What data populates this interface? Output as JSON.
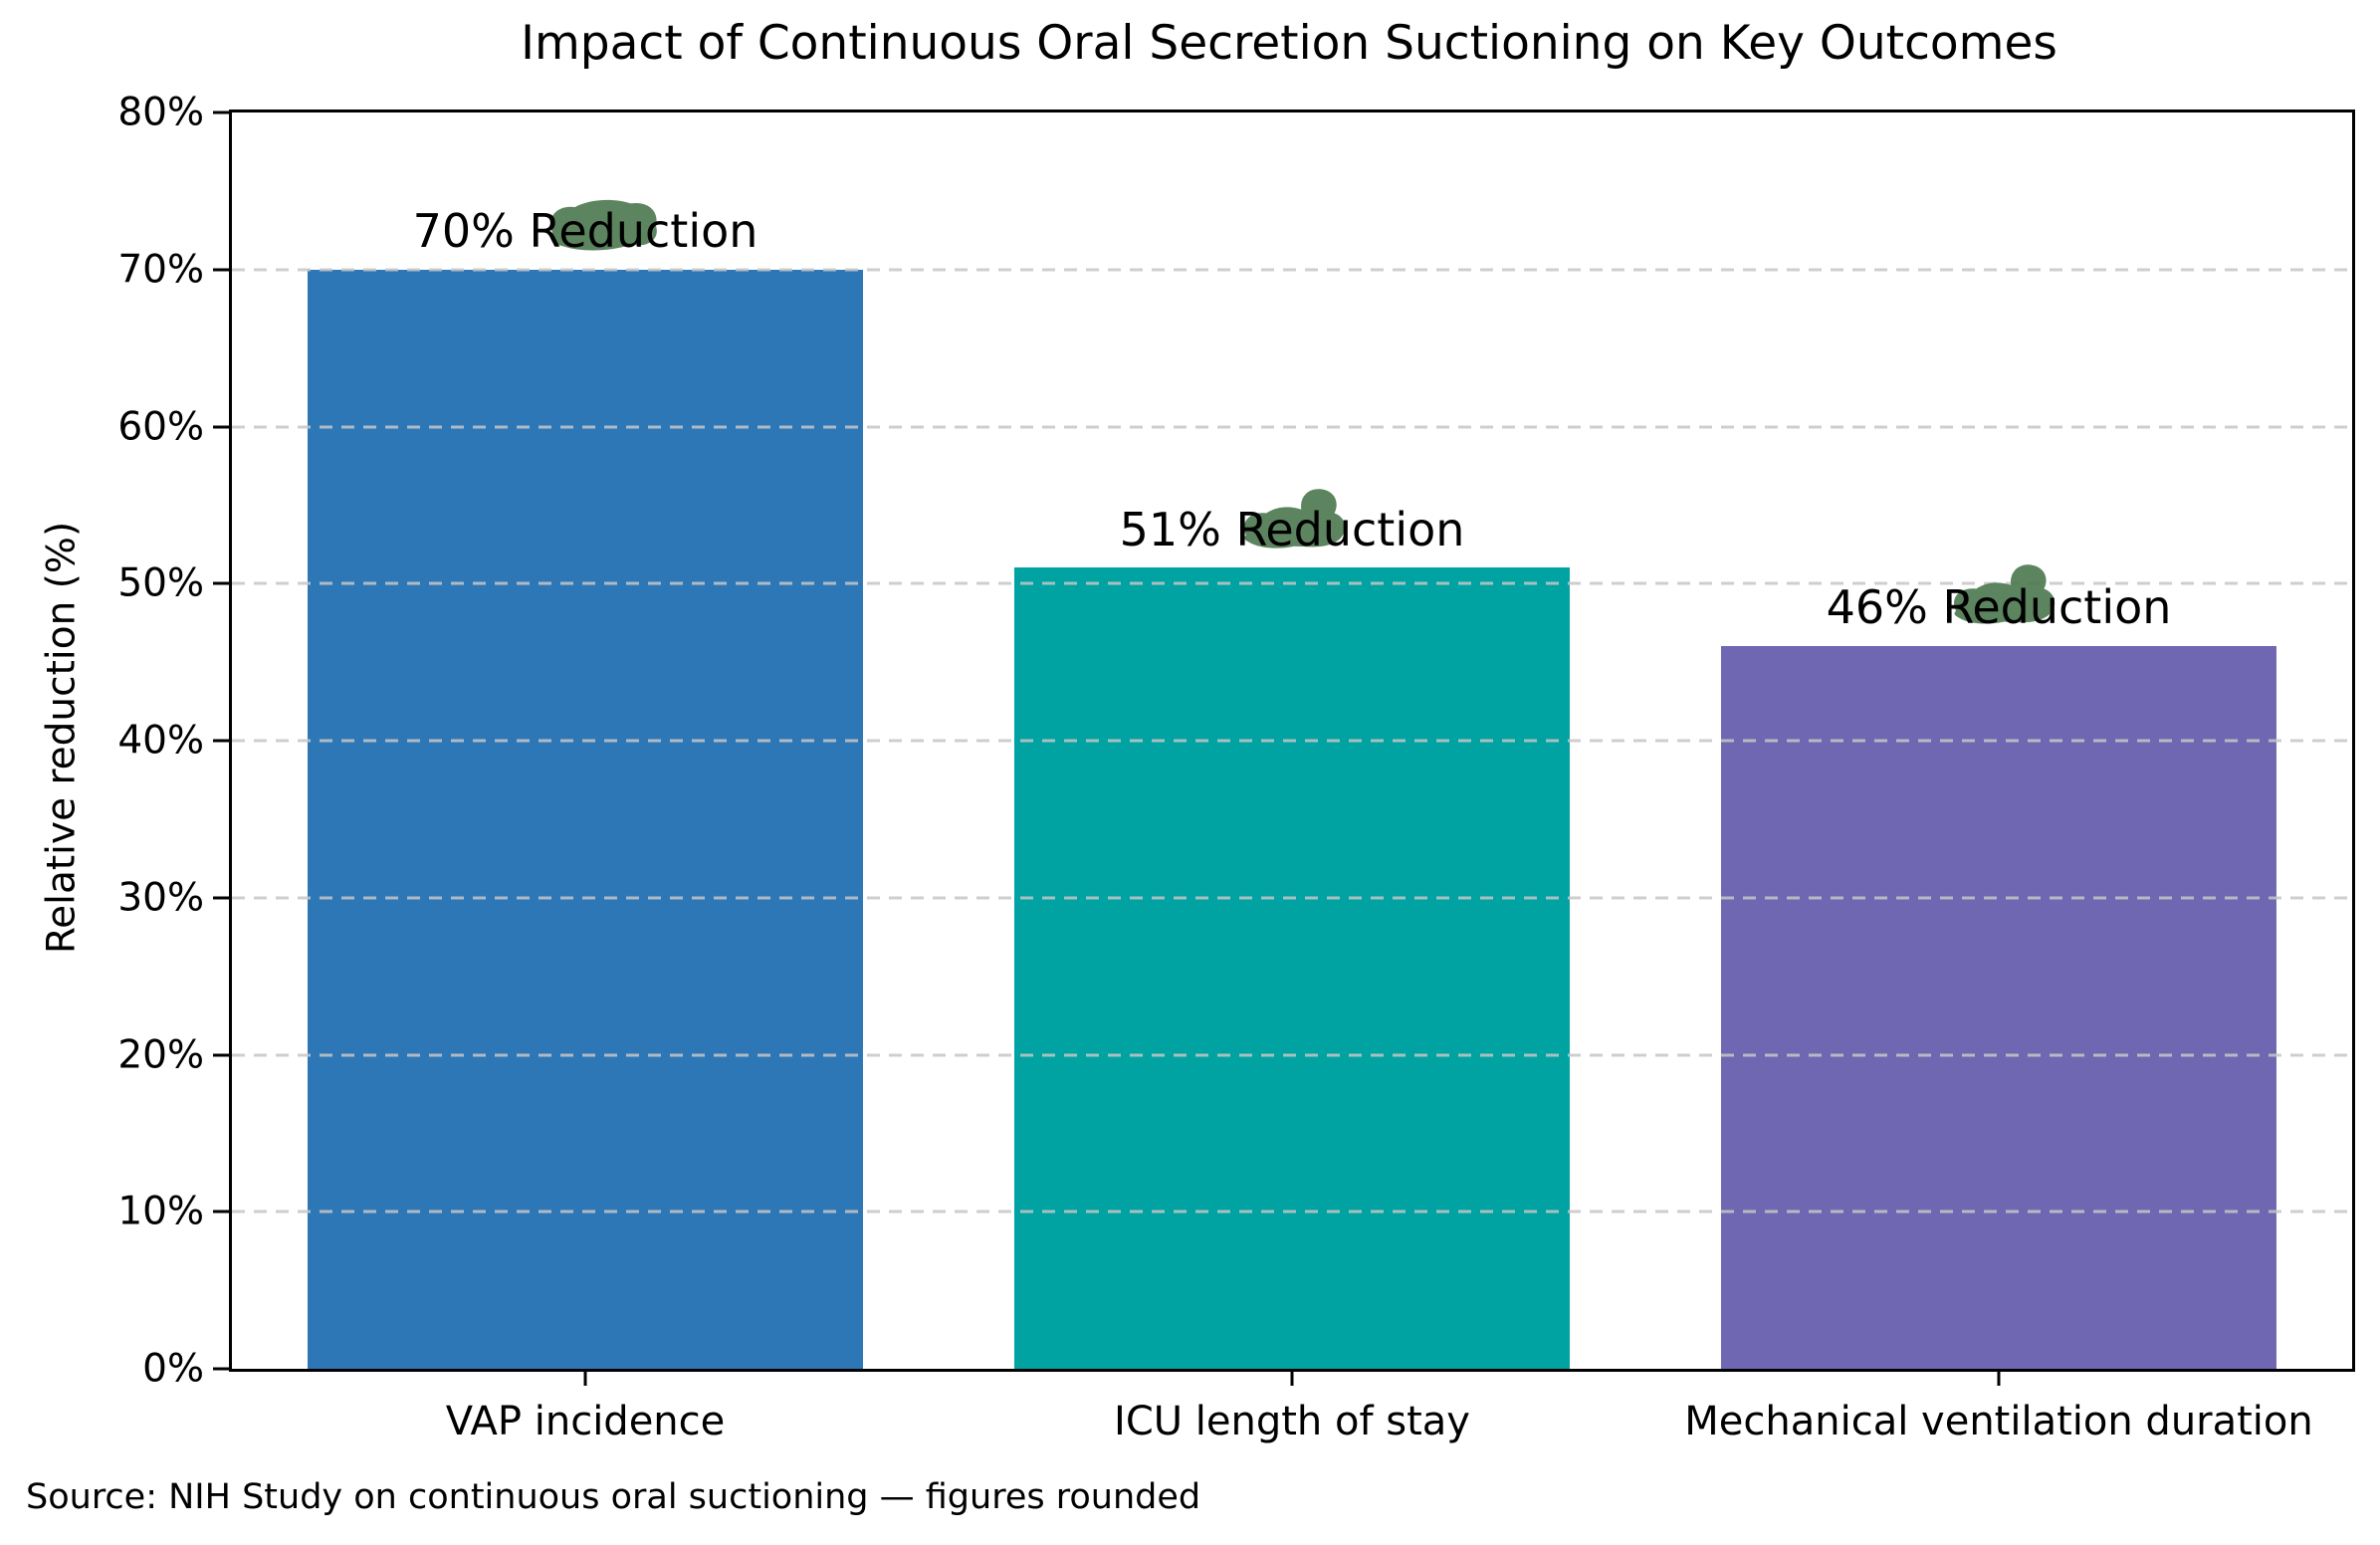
{
  "chart_data": {
    "type": "bar",
    "title": "Impact of Continuous Oral Secretion Suctioning on Key Outcomes",
    "ylabel": "Relative reduction (%)",
    "xlabel": "",
    "categories": [
      "VAP incidence",
      "ICU length of stay",
      "Mechanical ventilation duration"
    ],
    "values": [
      70,
      51,
      46
    ],
    "bar_value_labels": [
      "70% Reduction",
      "51% Reduction",
      "46% Reduction"
    ],
    "bar_colors": [
      "#2e77b7",
      "#00a3a1",
      "#6f67b1"
    ],
    "ylim": [
      0,
      80
    ],
    "yticks": [
      0,
      10,
      20,
      30,
      40,
      50,
      60,
      70,
      80
    ],
    "ytick_labels": [
      "0%",
      "10%",
      "20%",
      "30%",
      "40%",
      "50%",
      "60%",
      "70%",
      "80%"
    ],
    "grid": {
      "axis": "y",
      "style": "dashed",
      "color": "#c6c6c6"
    },
    "legend": "none",
    "annotation_scribble_color": "#4d7951"
  },
  "source_note": "Source: NIH Study on continuous oral suctioning — figures rounded"
}
